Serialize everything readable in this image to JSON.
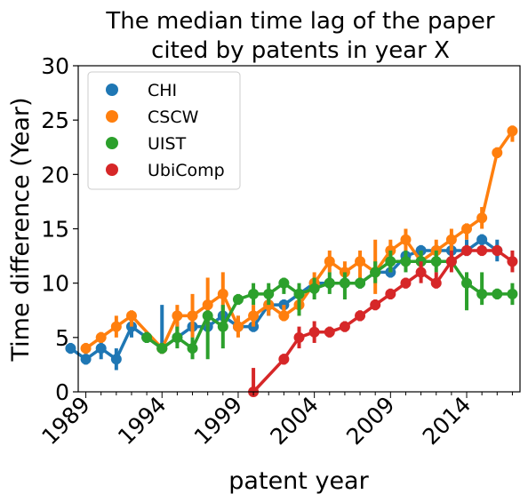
{
  "chart_data": {
    "type": "line",
    "title": [
      "The median time lag of the paper",
      "cited by patents in year X"
    ],
    "xlabel": "patent year",
    "ylabel": "Time difference (Year)",
    "xlim": [
      1988.5,
      2017.5
    ],
    "ylim": [
      0,
      30
    ],
    "xticks": [
      "1989",
      "1994",
      "1999",
      "2004",
      "2009",
      "2014"
    ],
    "xtick_values": [
      1989,
      1994,
      1999,
      2004,
      2009,
      2014
    ],
    "yticks": [
      "0",
      "5",
      "10",
      "15",
      "20",
      "25",
      "30"
    ],
    "ytick_values": [
      0,
      5,
      10,
      15,
      20,
      25,
      30
    ],
    "grid": false,
    "legend_position": "top-left",
    "series": [
      {
        "name": "CHI",
        "color": "#1f77b4",
        "x": [
          1988,
          1989,
          1990,
          1991,
          1992,
          1993,
          1994,
          1995,
          1996,
          1997,
          1998,
          1999,
          2000,
          2001,
          2002,
          2003,
          2004,
          2005,
          2006,
          2007,
          2008,
          2009,
          2010,
          2011,
          2012,
          2013,
          2014,
          2015,
          2016
        ],
        "y": [
          4,
          3,
          4,
          3,
          6,
          5,
          4,
          5,
          6,
          6,
          7,
          6,
          6,
          8,
          8,
          9,
          10,
          10,
          10,
          10,
          11,
          11,
          12.5,
          13,
          13,
          13,
          13,
          14,
          13
        ],
        "ci": [
          [
            3.5,
            4.5
          ],
          [
            2.5,
            3.5
          ],
          [
            3,
            5
          ],
          [
            2,
            4
          ],
          [
            5,
            7
          ],
          [
            4.5,
            5.5
          ],
          [
            3.5,
            8
          ],
          [
            4.5,
            6.5
          ],
          [
            5,
            7
          ],
          [
            5.5,
            7
          ],
          [
            6,
            8
          ],
          [
            5.5,
            7
          ],
          [
            5.5,
            6.5
          ],
          [
            7,
            9
          ],
          [
            7.5,
            8.5
          ],
          [
            8.5,
            9.5
          ],
          [
            9,
            10.5
          ],
          [
            9.5,
            10.5
          ],
          [
            9.5,
            10.5
          ],
          [
            9.5,
            10.5
          ],
          [
            10.5,
            12
          ],
          [
            10.5,
            11.5
          ],
          [
            12,
            13
          ],
          [
            12.5,
            13.5
          ],
          [
            12.5,
            13.5
          ],
          [
            12.5,
            13.5
          ],
          [
            12.5,
            14
          ],
          [
            13.5,
            14.5
          ],
          [
            12,
            14
          ]
        ]
      },
      {
        "name": "CSCW",
        "color": "#ff7f0e",
        "x": [
          1989,
          1990,
          1991,
          1992,
          1994,
          1995,
          1996,
          1997,
          1998,
          1999,
          2000,
          2001,
          2002,
          2003,
          2004,
          2005,
          2006,
          2007,
          2008,
          2009,
          2010,
          2011,
          2012,
          2013,
          2014,
          2015,
          2016,
          2017
        ],
        "y": [
          4,
          5,
          6,
          7,
          4,
          7,
          7,
          8,
          9,
          6,
          7,
          8,
          7,
          8,
          10,
          12,
          11,
          12,
          11,
          13,
          14,
          12,
          13,
          14,
          15,
          16,
          22,
          24
        ],
        "ci": [
          [
            3.5,
            4.5
          ],
          [
            4.5,
            5.5
          ],
          [
            5,
            7
          ],
          [
            6,
            7.5
          ],
          [
            3.5,
            4.5
          ],
          [
            5,
            8
          ],
          [
            5,
            9
          ],
          [
            6,
            10.5
          ],
          [
            7,
            11
          ],
          [
            5,
            7
          ],
          [
            6,
            8
          ],
          [
            7,
            9
          ],
          [
            6.5,
            8
          ],
          [
            7,
            9
          ],
          [
            9,
            11
          ],
          [
            11,
            13
          ],
          [
            10,
            12
          ],
          [
            10,
            13
          ],
          [
            9,
            14
          ],
          [
            11,
            14
          ],
          [
            12,
            15
          ],
          [
            11,
            13
          ],
          [
            12,
            14
          ],
          [
            13,
            15
          ],
          [
            14,
            15.5
          ],
          [
            15,
            17
          ],
          [
            21.5,
            22.5
          ],
          [
            23,
            24.5
          ]
        ]
      },
      {
        "name": "UIST",
        "color": "#2ca02c",
        "x": [
          1993,
          1994,
          1995,
          1996,
          1997,
          1998,
          1999,
          2000,
          2001,
          2002,
          2003,
          2004,
          2005,
          2006,
          2007,
          2008,
          2009,
          2010,
          2011,
          2012,
          2013,
          2014,
          2015,
          2016,
          2017
        ],
        "y": [
          5,
          4,
          5,
          4,
          7,
          6,
          8.5,
          9,
          9,
          10,
          9,
          9.5,
          10,
          10,
          10,
          11,
          12,
          12,
          12,
          12,
          12,
          10,
          9,
          9,
          9
        ],
        "ci": [
          [
            4.5,
            5.5
          ],
          [
            3.5,
            4.5
          ],
          [
            4,
            6
          ],
          [
            3,
            5
          ],
          [
            3,
            7.5
          ],
          [
            4,
            8
          ],
          [
            8,
            9
          ],
          [
            8,
            10
          ],
          [
            8,
            10
          ],
          [
            9,
            10.5
          ],
          [
            7,
            10
          ],
          [
            8.5,
            10.5
          ],
          [
            9,
            11
          ],
          [
            8.5,
            11
          ],
          [
            9.5,
            10.5
          ],
          [
            10,
            12
          ],
          [
            11,
            13
          ],
          [
            11,
            13
          ],
          [
            11,
            13
          ],
          [
            11,
            13
          ],
          [
            11.5,
            12.5
          ],
          [
            7.5,
            11
          ],
          [
            8,
            11
          ],
          [
            8.5,
            9.5
          ],
          [
            8,
            10
          ]
        ]
      },
      {
        "name": "UbiComp",
        "color": "#d62728",
        "x": [
          2000,
          2002,
          2003,
          2004,
          2005,
          2006,
          2007,
          2008,
          2009,
          2010,
          2011,
          2012,
          2013,
          2014,
          2015,
          2016,
          2017
        ],
        "y": [
          0,
          3,
          5,
          5.5,
          5.5,
          6,
          7,
          8,
          9,
          10,
          11,
          10,
          12,
          13,
          13,
          13,
          12
        ],
        "ci": [
          [
            0,
            2.2
          ],
          [
            2.5,
            3.5
          ],
          [
            4,
            6
          ],
          [
            4.5,
            6.5
          ],
          [
            5,
            6
          ],
          [
            5.5,
            6.5
          ],
          [
            6.5,
            7.5
          ],
          [
            7.5,
            8.5
          ],
          [
            8.5,
            9.5
          ],
          [
            9.5,
            10.5
          ],
          [
            10,
            12
          ],
          [
            9.5,
            11
          ],
          [
            11,
            13
          ],
          [
            12.5,
            13.5
          ],
          [
            12.5,
            13.5
          ],
          [
            12.5,
            13.5
          ],
          [
            11,
            13
          ]
        ]
      }
    ]
  }
}
